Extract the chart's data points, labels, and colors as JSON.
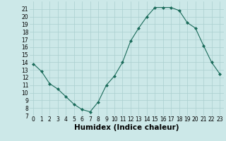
{
  "x": [
    0,
    1,
    2,
    3,
    4,
    5,
    6,
    7,
    8,
    9,
    10,
    11,
    12,
    13,
    14,
    15,
    16,
    17,
    18,
    19,
    20,
    21,
    22,
    23
  ],
  "y": [
    13.8,
    12.8,
    11.2,
    10.5,
    9.5,
    8.5,
    7.8,
    7.5,
    8.8,
    11.0,
    12.2,
    14.0,
    16.8,
    18.5,
    20.0,
    21.2,
    21.2,
    21.2,
    20.8,
    19.2,
    18.5,
    16.2,
    14.0,
    12.5
  ],
  "xlabel": "Humidex (Indice chaleur)",
  "xlim": [
    -0.5,
    23.5
  ],
  "ylim": [
    7,
    22
  ],
  "yticks": [
    7,
    8,
    9,
    10,
    11,
    12,
    13,
    14,
    15,
    16,
    17,
    18,
    19,
    20,
    21
  ],
  "xticks": [
    0,
    1,
    2,
    3,
    4,
    5,
    6,
    7,
    8,
    9,
    10,
    11,
    12,
    13,
    14,
    15,
    16,
    17,
    18,
    19,
    20,
    21,
    22,
    23
  ],
  "line_color": "#1a6b5a",
  "marker_color": "#1a6b5a",
  "bg_color": "#cce8e8",
  "grid_color": "#aacfcf",
  "tick_label_fontsize": 5.5,
  "xlabel_fontsize": 7.5
}
